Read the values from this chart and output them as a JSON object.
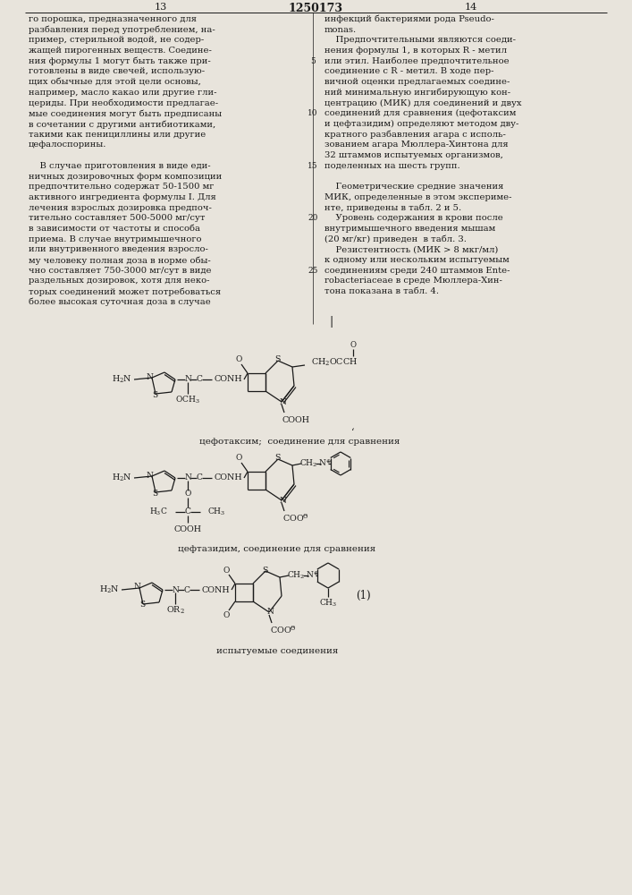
{
  "page_num_left": "13",
  "page_num_center": "1250173",
  "page_num_right": "14",
  "background_color": "#e8e4dc",
  "text_color": "#1a1a1a",
  "body_fs": 7.2,
  "col1_text": [
    "го порошка, предназначенного для",
    "разбавления перед употреблением, на-",
    "пример, стерильной водой, не содер-",
    "жащей пирогенных веществ. Соедине-",
    "ния формулы 1 могут быть также при-",
    "готовлены в виде свечей, использую-",
    "щих обычные для этой цели основы,",
    "например, масло какао или другие гли-",
    "цериды. При необходимости предлагае-",
    "мые соединения могут быть предписаны",
    "в сочетании с другими антибиотиками,",
    "такими как пенициллины или другие",
    "цефалоспорины.",
    "",
    "    В случае приготовления в виде еди-",
    "ничных дозировочных форм композиции",
    "предпочтительно содержат 50-1500 мг",
    "активного ингредиента формулы I. Для",
    "лечения взрослых дозировка предпоч-",
    "тительно составляет 500-5000 мг/сут",
    "в зависимости от частоты и способа",
    "приема. В случае внутримышечного",
    "или внутривенного введения взросло-",
    "му человеку полная доза в норме обы-",
    "чно составляет 750-3000 мг/сут в виде",
    "раздельных дозировок, хотя для неко-",
    "торых соединений может потребоваться",
    "более высокая суточная доза в случае"
  ],
  "col2_text": [
    "инфекций бактериями рода Pseudo-",
    "monas.",
    "    Предпочтительными являются соеди-",
    "нения формулы 1, в которых R - метил",
    "или этил. Наиболее предпочтительное",
    "соединение с R - метил. В ходе пер-",
    "вичной оценки предлагаемых соедине-",
    "ний минимальную ингибирующую кон-",
    "центрацию (МИК) для соединений и двух",
    "соединений для сравнения (цефотаксим",
    "и цефтазидим) определяют методом дву-",
    "кратного разбавления агара с исполь-",
    "зованием агара Мюллера-Хинтона для",
    "32 штаммов испытуемых организмов,",
    "поделенных на шесть групп.",
    "",
    "    Геометрические средние значения",
    "МИК, определенные в этом экспериме-",
    "нте, приведены в табл. 2 и 5.",
    "    Уровень содержания в крови после",
    "внутримышечного введения мышам",
    "(20 мг/кг) приведен  в табл. 3.",
    "    Резистентность (МИК > 8 мкг/мл)",
    "к одному или нескольким испытуемым",
    "соединениям среди 240 штаммов Ente-",
    "robacteriaceae в среде Мюллера-Хин-",
    "тона показана в табл. 4."
  ],
  "line_numbers": [
    [
      4,
      "5"
    ],
    [
      9,
      "10"
    ],
    [
      14,
      "15"
    ],
    [
      19,
      "20"
    ],
    [
      24,
      "25"
    ]
  ],
  "cefotaxim_label": "цефотаксим;  соединение для сравнения",
  "ceftazidim_label": "цефтазидим, соединение для сравнения",
  "compound1_label": "испытуемые соединения",
  "compound1_number": "(1)"
}
